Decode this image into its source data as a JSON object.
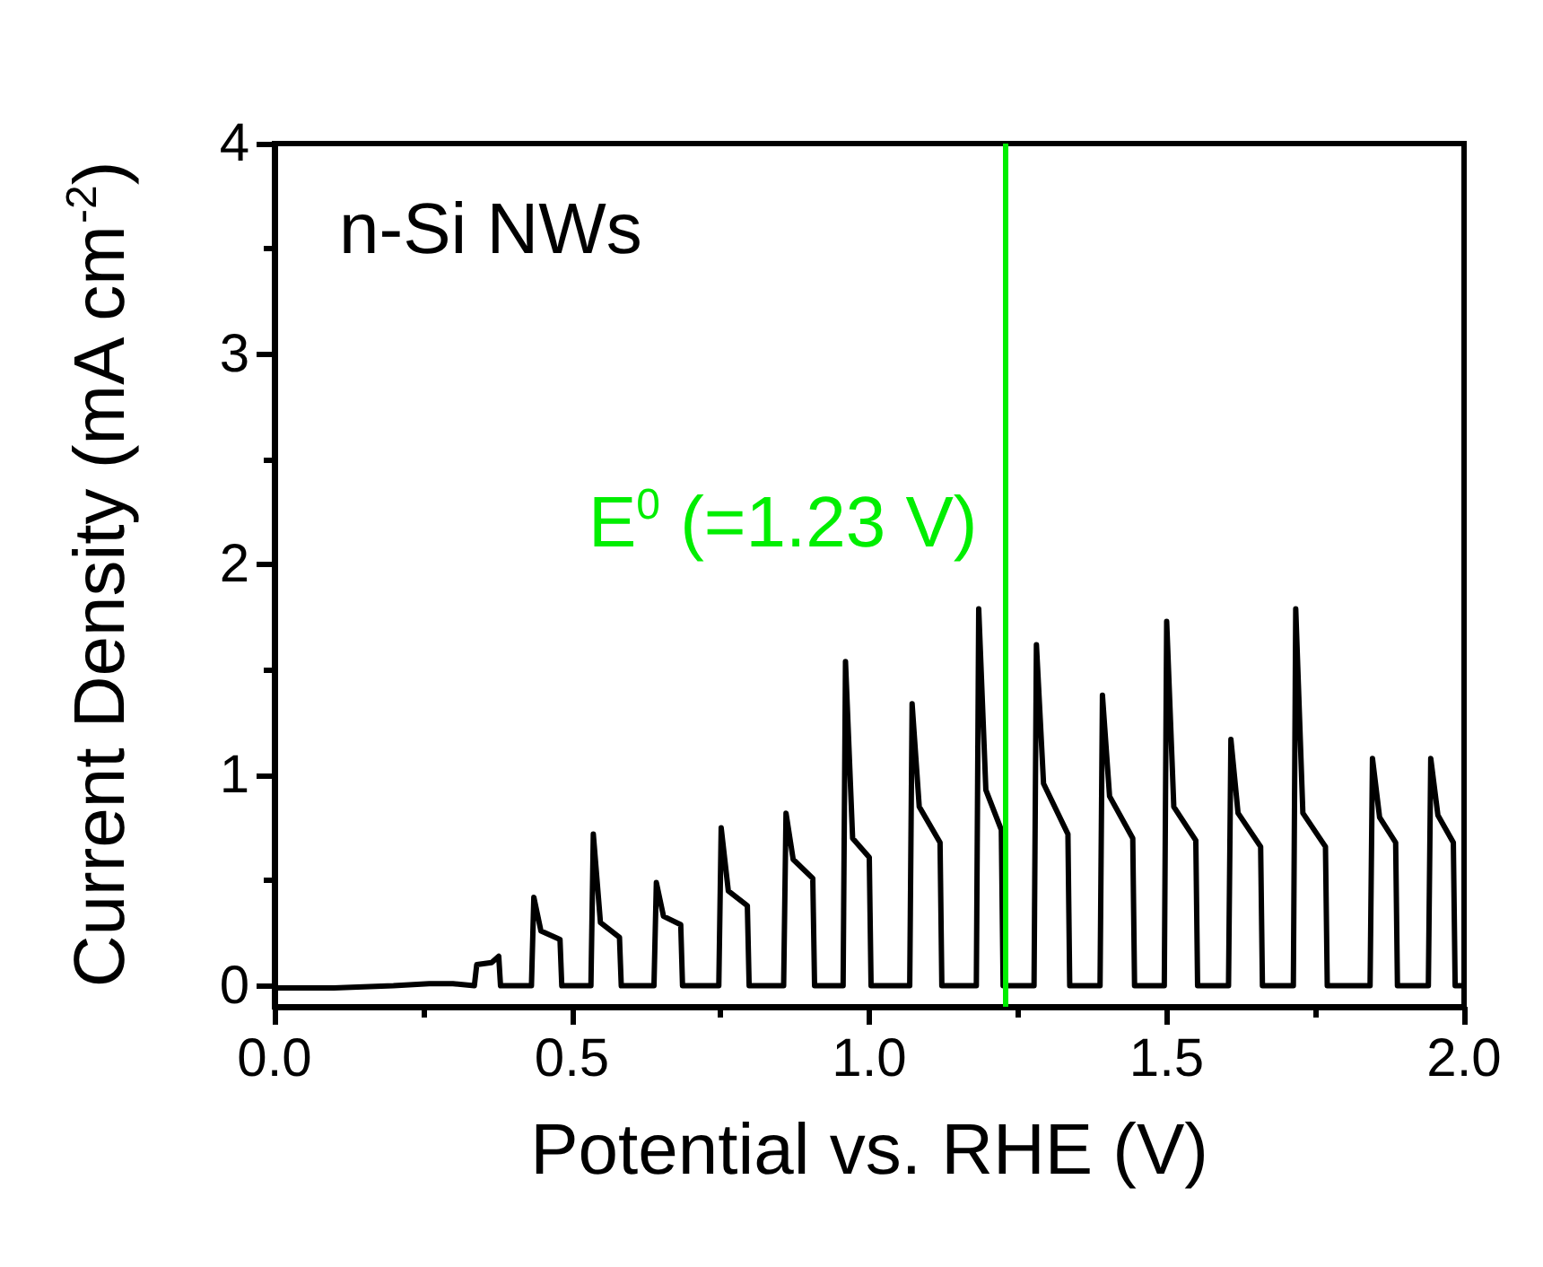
{
  "chart_data": {
    "type": "line",
    "xlabel": "Potential vs. RHE (V)",
    "ylabel": "Current Density (mA cm$^{-2}$)",
    "annotations": [
      "n-Si NWs"
    ],
    "xlim": [
      0,
      2
    ],
    "xticks": [
      {
        "value": 0,
        "label": "0.0"
      },
      {
        "value": 0.5,
        "label": "0.5"
      },
      {
        "value": 1,
        "label": "1.0"
      },
      {
        "value": 1.5,
        "label": "1.5"
      },
      {
        "value": 2,
        "label": "2.0"
      }
    ],
    "ylim": [
      -0.1,
      4
    ],
    "yticks": [
      0,
      1,
      2,
      3,
      4
    ],
    "grid": false,
    "marker": "none",
    "line_style": "solid",
    "ref_lines": [
      {
        "axis": "x",
        "value": 1.23,
        "label": "E$^{0}$ (=1.23 V)",
        "color": "#00ee00"
      }
    ],
    "series": [
      {
        "color": "#000000",
        "x": [
          0,
          0.1,
          0.2,
          0.26,
          0.3,
          0.336,
          0.34,
          0.365,
          0.377,
          0.38,
          0.432,
          0.436,
          0.448,
          0.48,
          0.483,
          0.532,
          0.536,
          0.548,
          0.58,
          0.583,
          0.638,
          0.642,
          0.654,
          0.683,
          0.686,
          0.747,
          0.751,
          0.763,
          0.795,
          0.798,
          0.856,
          0.86,
          0.872,
          0.905,
          0.908,
          0.956,
          0.96,
          0.972,
          1.0,
          1.003,
          1.068,
          1.072,
          1.084,
          1.119,
          1.122,
          1.18,
          1.184,
          1.196,
          1.222,
          1.225,
          1.277,
          1.281,
          1.293,
          1.334,
          1.337,
          1.388,
          1.392,
          1.404,
          1.443,
          1.446,
          1.496,
          1.5,
          1.512,
          1.549,
          1.552,
          1.604,
          1.608,
          1.62,
          1.658,
          1.661,
          1.713,
          1.717,
          1.729,
          1.767,
          1.77,
          1.842,
          1.846,
          1.858,
          1.885,
          1.888,
          1.94,
          1.944,
          1.956,
          1.982,
          1.985,
          2.0
        ],
        "values": [
          -0.01,
          -0.01,
          0,
          0.01,
          0.01,
          0,
          0.1,
          0.11,
          0.14,
          0,
          0,
          0.42,
          0.26,
          0.22,
          0,
          0,
          0.72,
          0.3,
          0.23,
          0,
          0,
          0.49,
          0.33,
          0.29,
          0,
          0,
          0.75,
          0.45,
          0.38,
          0,
          0,
          0.82,
          0.6,
          0.51,
          0,
          0,
          1.54,
          0.7,
          0.61,
          0,
          0,
          1.34,
          0.85,
          0.68,
          0,
          0,
          1.79,
          0.93,
          0.74,
          0,
          0,
          1.62,
          0.96,
          0.72,
          0,
          0,
          1.38,
          0.9,
          0.7,
          0,
          0,
          1.73,
          0.85,
          0.69,
          0,
          0,
          1.17,
          0.82,
          0.66,
          0,
          0,
          1.79,
          0.82,
          0.66,
          0,
          0,
          1.08,
          0.8,
          0.68,
          0,
          0,
          1.08,
          0.81,
          0.68,
          0,
          0
        ]
      }
    ]
  }
}
